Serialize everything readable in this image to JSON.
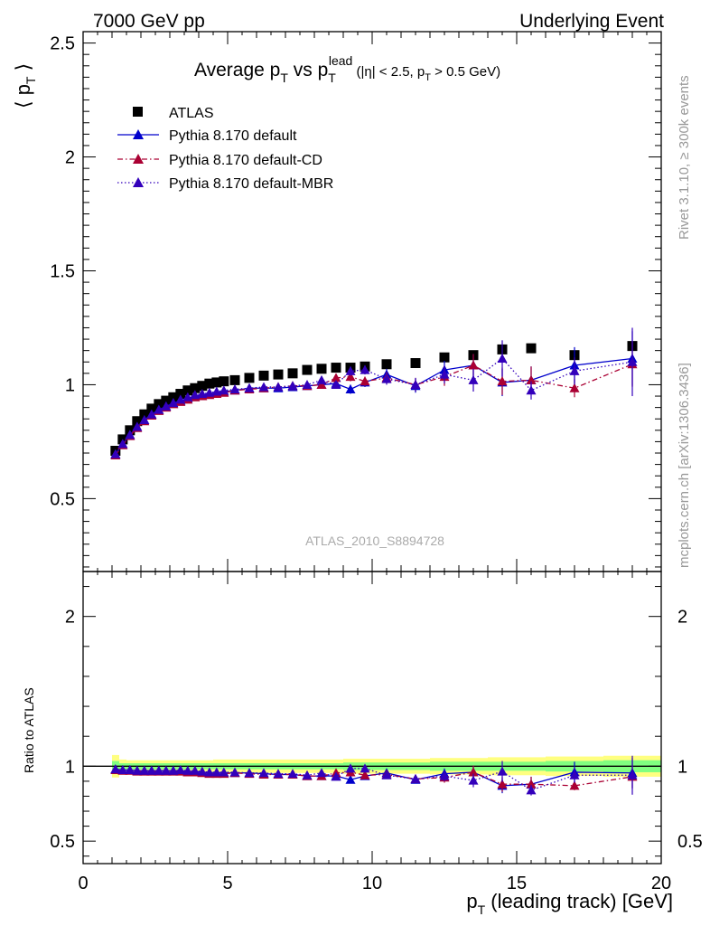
{
  "header": {
    "left": "7000 GeV pp",
    "right": "Underlying Event"
  },
  "side_labels": {
    "top": "Rivet 3.1.10, ≥ 300k events",
    "bottom": "mcplots.cern.ch [arXiv:1306.3436]"
  },
  "watermark": "ATLAS_2010_S8894728",
  "colors": {
    "atlas": "#000000",
    "default": "#0000cc",
    "cd": "#aa0033",
    "mbr": "#3300bb",
    "band_yellow": "#ffff80",
    "band_green": "#80ff80"
  },
  "chart_data": [
    {
      "type": "scatter",
      "panel": "main",
      "title": {
        "main": "Average p",
        "sub1": "T",
        "mid": " vs p",
        "sub2": "T",
        "sup": "lead",
        "tail": " (|η| < 2.5, p",
        "sub3": "T",
        "end": " > 0.5 GeV)"
      },
      "ylabel": {
        "pre": "⟨ p",
        "sub": "T",
        "post": " ⟩"
      },
      "xlim": [
        0,
        20
      ],
      "ylim": [
        0.18,
        2.55
      ],
      "yticks": [
        "0.5",
        "1",
        "1.5",
        "2",
        "2.5"
      ],
      "legend_position": "top-left",
      "x": [
        1.12,
        1.37,
        1.62,
        1.87,
        2.12,
        2.37,
        2.62,
        2.87,
        3.12,
        3.37,
        3.62,
        3.87,
        4.12,
        4.37,
        4.62,
        4.87,
        5.25,
        5.75,
        6.25,
        6.75,
        7.25,
        7.75,
        8.25,
        8.75,
        9.25,
        9.75,
        10.5,
        11.5,
        12.5,
        13.5,
        14.5,
        15.5,
        17.0,
        19.0
      ],
      "series": [
        {
          "name": "ATLAS",
          "key": "atlas",
          "style": "square",
          "values": [
            0.71,
            0.76,
            0.8,
            0.84,
            0.87,
            0.895,
            0.915,
            0.93,
            0.945,
            0.96,
            0.975,
            0.985,
            0.995,
            1.005,
            1.01,
            1.015,
            1.02,
            1.03,
            1.04,
            1.045,
            1.05,
            1.065,
            1.07,
            1.075,
            1.075,
            1.08,
            1.09,
            1.095,
            1.12,
            1.13,
            1.155,
            1.16,
            1.13,
            1.17
          ]
        },
        {
          "name": "Pythia 8.170 default",
          "key": "default",
          "style": "solid",
          "values": [
            0.695,
            0.74,
            0.78,
            0.815,
            0.845,
            0.87,
            0.89,
            0.905,
            0.92,
            0.93,
            0.94,
            0.95,
            0.955,
            0.96,
            0.965,
            0.97,
            0.975,
            0.985,
            0.985,
            0.985,
            0.99,
            0.995,
            1.0,
            1.005,
            0.98,
            1.01,
            1.045,
            0.995,
            1.065,
            1.085,
            1.01,
            1.02,
            1.085,
            1.115
          ],
          "errors": [
            0.005,
            0.005,
            0.005,
            0.005,
            0.005,
            0.005,
            0.005,
            0.005,
            0.005,
            0.005,
            0.005,
            0.005,
            0.005,
            0.005,
            0.005,
            0.005,
            0.008,
            0.008,
            0.01,
            0.01,
            0.012,
            0.012,
            0.015,
            0.015,
            0.02,
            0.02,
            0.025,
            0.03,
            0.04,
            0.05,
            0.06,
            0.06,
            0.08,
            0.12
          ]
        },
        {
          "name": "Pythia 8.170 default-CD",
          "key": "cd",
          "style": "dashdot",
          "values": [
            0.69,
            0.735,
            0.775,
            0.81,
            0.84,
            0.865,
            0.885,
            0.9,
            0.915,
            0.925,
            0.935,
            0.945,
            0.95,
            0.955,
            0.96,
            0.965,
            0.975,
            0.98,
            0.985,
            0.99,
            0.995,
            0.995,
            1.0,
            1.03,
            1.035,
            1.015,
            1.03,
            1.0,
            1.035,
            1.085,
            1.015,
            1.02,
            0.985,
            1.09
          ],
          "errors": [
            0.005,
            0.005,
            0.005,
            0.005,
            0.005,
            0.005,
            0.005,
            0.005,
            0.005,
            0.005,
            0.005,
            0.005,
            0.005,
            0.005,
            0.005,
            0.005,
            0.008,
            0.008,
            0.01,
            0.01,
            0.012,
            0.012,
            0.015,
            0.015,
            0.02,
            0.02,
            0.025,
            0.03,
            0.04,
            0.05,
            0.06,
            0.06,
            0.04,
            0.1
          ]
        },
        {
          "name": "Pythia 8.170 default-MBR",
          "key": "mbr",
          "style": "dotted",
          "values": [
            0.695,
            0.74,
            0.78,
            0.815,
            0.845,
            0.87,
            0.89,
            0.905,
            0.92,
            0.935,
            0.945,
            0.955,
            0.96,
            0.965,
            0.97,
            0.975,
            0.98,
            0.985,
            0.99,
            0.99,
            0.995,
            1.0,
            1.02,
            1.0,
            1.06,
            1.065,
            1.025,
            1.0,
            1.045,
            1.02,
            1.115,
            0.975,
            1.06,
            1.1
          ],
          "errors": [
            0.005,
            0.005,
            0.005,
            0.005,
            0.005,
            0.005,
            0.005,
            0.005,
            0.005,
            0.005,
            0.005,
            0.005,
            0.005,
            0.005,
            0.005,
            0.005,
            0.008,
            0.008,
            0.01,
            0.01,
            0.012,
            0.012,
            0.015,
            0.015,
            0.02,
            0.02,
            0.025,
            0.03,
            0.04,
            0.05,
            0.08,
            0.04,
            0.06,
            0.15
          ]
        }
      ]
    },
    {
      "type": "scatter",
      "panel": "ratio",
      "ylabel": "Ratio to ATLAS",
      "xlabel": {
        "pre": "p",
        "sub": "T",
        "post": " (leading track) [GeV]"
      },
      "xlim": [
        0,
        20
      ],
      "ylim": [
        0.35,
        2.3
      ],
      "yticks": [
        "0.5",
        "1",
        "2"
      ],
      "xticks": [
        "0",
        "5",
        "10",
        "15",
        "20"
      ],
      "reference_line": 1,
      "band": {
        "x_edges": [
          1.0,
          1.25,
          1.5,
          1.75,
          2.0,
          2.25,
          2.5,
          2.75,
          3.0,
          3.25,
          3.5,
          3.75,
          4.0,
          4.25,
          4.5,
          4.75,
          5.0,
          5.5,
          6.0,
          6.5,
          7.0,
          7.5,
          8.0,
          8.5,
          9.0,
          9.5,
          10.0,
          11.0,
          12.0,
          13.0,
          14.0,
          15.0,
          16.0,
          18.0,
          20.0
        ],
        "yellow_half": [
          0.075,
          0.045,
          0.04,
          0.04,
          0.04,
          0.04,
          0.04,
          0.04,
          0.04,
          0.04,
          0.04,
          0.04,
          0.04,
          0.04,
          0.045,
          0.045,
          0.045,
          0.045,
          0.045,
          0.045,
          0.045,
          0.045,
          0.045,
          0.045,
          0.05,
          0.05,
          0.05,
          0.05,
          0.055,
          0.055,
          0.06,
          0.06,
          0.065,
          0.07
        ],
        "green_half": [
          0.035,
          0.02,
          0.02,
          0.02,
          0.02,
          0.02,
          0.02,
          0.02,
          0.02,
          0.02,
          0.02,
          0.02,
          0.02,
          0.02,
          0.02,
          0.02,
          0.02,
          0.02,
          0.02,
          0.02,
          0.02,
          0.02,
          0.02,
          0.02,
          0.025,
          0.025,
          0.025,
          0.025,
          0.03,
          0.03,
          0.03,
          0.03,
          0.035,
          0.04
        ]
      },
      "x": [
        1.12,
        1.37,
        1.62,
        1.87,
        2.12,
        2.37,
        2.62,
        2.87,
        3.12,
        3.37,
        3.62,
        3.87,
        4.12,
        4.37,
        4.62,
        4.87,
        5.25,
        5.75,
        6.25,
        6.75,
        7.25,
        7.75,
        8.25,
        8.75,
        9.25,
        9.75,
        10.5,
        11.5,
        12.5,
        13.5,
        14.5,
        15.5,
        17.0,
        19.0
      ],
      "series": [
        {
          "name": "Pythia 8.170 default",
          "key": "default",
          "style": "solid",
          "values": [
            0.98,
            0.975,
            0.975,
            0.97,
            0.97,
            0.97,
            0.97,
            0.97,
            0.97,
            0.97,
            0.965,
            0.965,
            0.96,
            0.955,
            0.955,
            0.955,
            0.955,
            0.955,
            0.95,
            0.945,
            0.945,
            0.935,
            0.935,
            0.935,
            0.91,
            0.935,
            0.955,
            0.91,
            0.95,
            0.96,
            0.87,
            0.88,
            0.96,
            0.955
          ],
          "errors": [
            0.007,
            0.007,
            0.007,
            0.007,
            0.007,
            0.007,
            0.007,
            0.007,
            0.007,
            0.007,
            0.007,
            0.007,
            0.007,
            0.007,
            0.007,
            0.007,
            0.008,
            0.008,
            0.01,
            0.01,
            0.012,
            0.012,
            0.014,
            0.014,
            0.018,
            0.018,
            0.02,
            0.025,
            0.035,
            0.045,
            0.05,
            0.05,
            0.07,
            0.1
          ]
        },
        {
          "name": "Pythia 8.170 default-CD",
          "key": "cd",
          "style": "dashdot",
          "values": [
            0.975,
            0.97,
            0.97,
            0.965,
            0.965,
            0.965,
            0.965,
            0.965,
            0.965,
            0.965,
            0.96,
            0.96,
            0.955,
            0.95,
            0.95,
            0.95,
            0.955,
            0.95,
            0.945,
            0.945,
            0.945,
            0.935,
            0.935,
            0.955,
            0.96,
            0.94,
            0.945,
            0.915,
            0.925,
            0.96,
            0.88,
            0.88,
            0.87,
            0.93
          ],
          "errors": [
            0.007,
            0.007,
            0.007,
            0.007,
            0.007,
            0.007,
            0.007,
            0.007,
            0.007,
            0.007,
            0.007,
            0.007,
            0.007,
            0.007,
            0.007,
            0.007,
            0.008,
            0.008,
            0.01,
            0.01,
            0.012,
            0.012,
            0.014,
            0.014,
            0.018,
            0.018,
            0.02,
            0.025,
            0.035,
            0.045,
            0.05,
            0.05,
            0.03,
            0.08
          ]
        },
        {
          "name": "Pythia 8.170 default-MBR",
          "key": "mbr",
          "style": "dotted",
          "values": [
            0.98,
            0.975,
            0.975,
            0.97,
            0.97,
            0.97,
            0.97,
            0.97,
            0.97,
            0.975,
            0.97,
            0.97,
            0.965,
            0.96,
            0.96,
            0.96,
            0.96,
            0.955,
            0.955,
            0.95,
            0.95,
            0.94,
            0.955,
            0.93,
            0.985,
            0.985,
            0.94,
            0.915,
            0.935,
            0.905,
            0.965,
            0.84,
            0.94,
            0.94
          ],
          "errors": [
            0.007,
            0.007,
            0.007,
            0.007,
            0.007,
            0.007,
            0.007,
            0.007,
            0.007,
            0.007,
            0.007,
            0.007,
            0.007,
            0.007,
            0.007,
            0.007,
            0.008,
            0.008,
            0.01,
            0.01,
            0.012,
            0.012,
            0.014,
            0.014,
            0.018,
            0.018,
            0.02,
            0.025,
            0.035,
            0.045,
            0.07,
            0.035,
            0.05,
            0.13
          ]
        }
      ]
    }
  ]
}
